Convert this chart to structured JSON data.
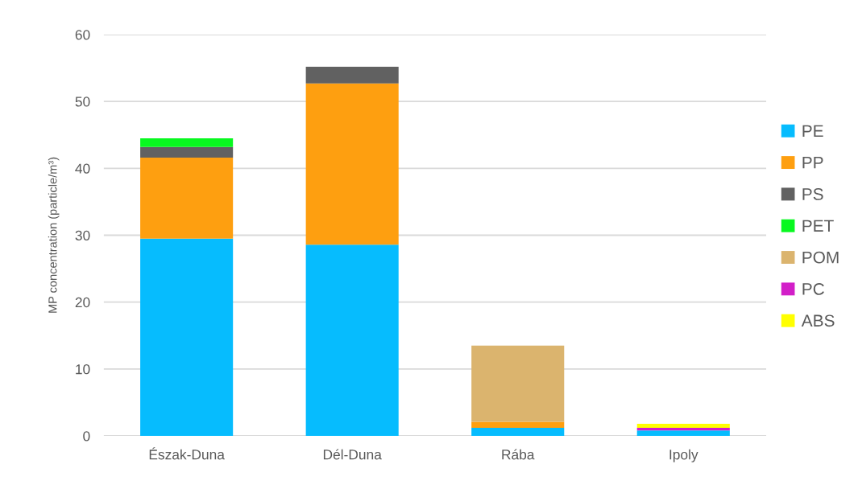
{
  "chart_data": {
    "type": "bar",
    "stacked": true,
    "ylabel": "MP concentration (particle/m³)",
    "categories": [
      "Észak-Duna",
      "Dél-Duna",
      "Rába",
      "Ipoly"
    ],
    "series": [
      {
        "name": "PE",
        "color": "#06bcfe",
        "values": [
          29.5,
          28.6,
          1.2,
          0.8
        ]
      },
      {
        "name": "PP",
        "color": "#fe9f10",
        "values": [
          12.1,
          24.1,
          0.9,
          null
        ]
      },
      {
        "name": "PS",
        "color": "#616161",
        "values": [
          1.6,
          2.5,
          null,
          null
        ]
      },
      {
        "name": "PET",
        "color": "#08f820",
        "values": [
          1.3,
          null,
          null,
          null
        ]
      },
      {
        "name": "POM",
        "color": "#dbb46e",
        "values": [
          null,
          null,
          11.4,
          null
        ]
      },
      {
        "name": "PC",
        "color": "#d21fc8",
        "values": [
          null,
          null,
          null,
          0.4
        ]
      },
      {
        "name": "ABS",
        "color": "#ffff00",
        "values": [
          null,
          null,
          null,
          0.6
        ]
      }
    ],
    "ylim": [
      0,
      60
    ],
    "yticks": [
      0,
      10,
      20,
      30,
      40,
      50,
      60
    ],
    "grid": "y",
    "legend": "right"
  }
}
